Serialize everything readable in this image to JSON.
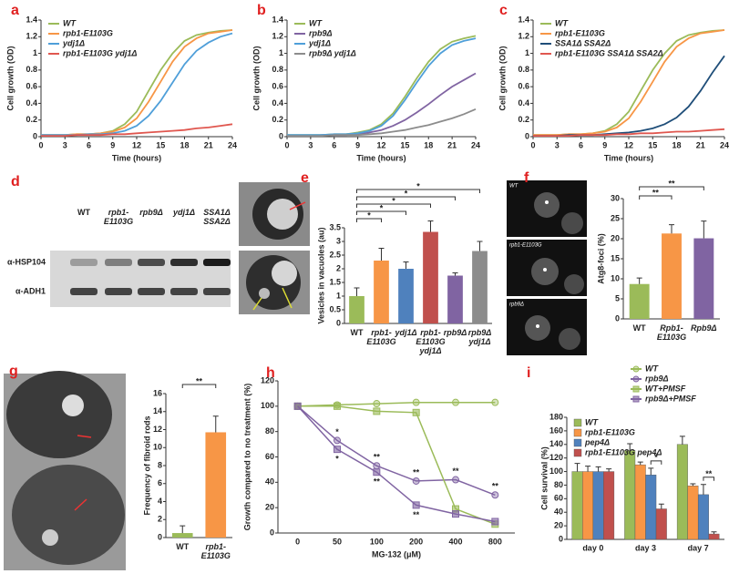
{
  "panel_letters": [
    "a",
    "b",
    "c",
    "d",
    "e",
    "f",
    "g",
    "h",
    "i"
  ],
  "blot": {
    "lanes": [
      "WT",
      "rpb1-E1103G",
      "rpb9Δ",
      "ydj1Δ",
      "SSA1Δ SSA2Δ"
    ],
    "rows": [
      "α-HSP104",
      "α-ADH1"
    ]
  },
  "micrograph_labels": [
    "WT",
    "rpb1-E1103G",
    "rpb9Δ"
  ],
  "chart_data": [
    {
      "type": "line",
      "x": [
        0,
        1.5,
        3,
        4.5,
        6,
        7.5,
        9,
        10.5,
        12,
        13.5,
        15,
        16.5,
        18,
        19.5,
        21,
        22.5,
        24
      ],
      "xlim": [
        0,
        24
      ],
      "xticks": [
        0,
        3,
        6,
        9,
        12,
        15,
        18,
        21,
        24
      ],
      "ylim": [
        0,
        1.4
      ],
      "yticks": [
        0,
        0.2,
        0.4,
        0.6,
        0.8,
        1,
        1.2,
        1.4
      ],
      "xlabel": "Time (hours)",
      "ylabel": "Cell growth (OD)",
      "legend": "upper left",
      "series": [
        {
          "name": "WT",
          "color": "#9bbb59",
          "values": [
            0.02,
            0.02,
            0.02,
            0.03,
            0.03,
            0.04,
            0.07,
            0.15,
            0.3,
            0.55,
            0.8,
            1.0,
            1.15,
            1.22,
            1.25,
            1.27,
            1.28
          ]
        },
        {
          "name": "rpb1-E1103G",
          "color": "#f79646",
          "values": [
            0.02,
            0.02,
            0.02,
            0.03,
            0.03,
            0.04,
            0.06,
            0.11,
            0.22,
            0.42,
            0.66,
            0.9,
            1.08,
            1.18,
            1.24,
            1.26,
            1.28
          ]
        },
        {
          "name": "ydj1Δ",
          "color": "#4f9fd9",
          "values": [
            0.02,
            0.02,
            0.02,
            0.02,
            0.03,
            0.03,
            0.04,
            0.07,
            0.13,
            0.25,
            0.43,
            0.65,
            0.87,
            1.03,
            1.13,
            1.2,
            1.24
          ]
        },
        {
          "name": "rpb1-E1103G ydj1Δ",
          "color": "#e0574f",
          "values": [
            0.01,
            0.01,
            0.01,
            0.02,
            0.02,
            0.02,
            0.03,
            0.03,
            0.04,
            0.05,
            0.06,
            0.07,
            0.08,
            0.1,
            0.11,
            0.13,
            0.15
          ]
        }
      ]
    },
    {
      "type": "line",
      "x": [
        0,
        1.5,
        3,
        4.5,
        6,
        7.5,
        9,
        10.5,
        12,
        13.5,
        15,
        16.5,
        18,
        19.5,
        21,
        22.5,
        24
      ],
      "xlim": [
        0,
        24
      ],
      "xticks": [
        0,
        3,
        6,
        9,
        12,
        15,
        18,
        21,
        24
      ],
      "ylim": [
        0,
        1.4
      ],
      "yticks": [
        0,
        0.2,
        0.4,
        0.6,
        0.8,
        1,
        1.2,
        1.4
      ],
      "xlabel": "Time (hours)",
      "ylabel": "Cell growth (OD)",
      "legend": "upper left",
      "series": [
        {
          "name": "WT",
          "color": "#9bbb59",
          "values": [
            0.02,
            0.02,
            0.02,
            0.02,
            0.03,
            0.03,
            0.05,
            0.08,
            0.15,
            0.28,
            0.48,
            0.7,
            0.9,
            1.05,
            1.14,
            1.18,
            1.21
          ]
        },
        {
          "name": "rpb9Δ",
          "color": "#8064a2",
          "values": [
            0.01,
            0.01,
            0.01,
            0.02,
            0.02,
            0.02,
            0.03,
            0.05,
            0.08,
            0.13,
            0.2,
            0.29,
            0.39,
            0.5,
            0.6,
            0.68,
            0.76
          ]
        },
        {
          "name": "ydj1Δ",
          "color": "#4f9fd9",
          "values": [
            0.02,
            0.02,
            0.02,
            0.02,
            0.03,
            0.03,
            0.04,
            0.07,
            0.13,
            0.25,
            0.44,
            0.65,
            0.85,
            1.0,
            1.1,
            1.15,
            1.18
          ]
        },
        {
          "name": "rpb9Δ ydj1Δ",
          "color": "#8c8c8c",
          "values": [
            0.01,
            0.01,
            0.01,
            0.01,
            0.02,
            0.02,
            0.02,
            0.03,
            0.04,
            0.06,
            0.08,
            0.11,
            0.14,
            0.18,
            0.22,
            0.27,
            0.33
          ]
        }
      ]
    },
    {
      "type": "line",
      "x": [
        0,
        1.5,
        3,
        4.5,
        6,
        7.5,
        9,
        10.5,
        12,
        13.5,
        15,
        16.5,
        18,
        19.5,
        21,
        22.5,
        24
      ],
      "xlim": [
        0,
        24
      ],
      "xticks": [
        0,
        3,
        6,
        9,
        12,
        15,
        18,
        21,
        24
      ],
      "ylim": [
        0,
        1.4
      ],
      "yticks": [
        0,
        0.2,
        0.4,
        0.6,
        0.8,
        1,
        1.2,
        1.4
      ],
      "xlabel": "Time (hours)",
      "ylabel": "Cell growth (OD)",
      "legend": "upper left",
      "series": [
        {
          "name": "WT",
          "color": "#9bbb59",
          "values": [
            0.02,
            0.02,
            0.02,
            0.03,
            0.03,
            0.04,
            0.07,
            0.15,
            0.3,
            0.55,
            0.8,
            1.0,
            1.15,
            1.22,
            1.25,
            1.27,
            1.28
          ]
        },
        {
          "name": "rpb1-E1103G",
          "color": "#f79646",
          "values": [
            0.02,
            0.02,
            0.02,
            0.03,
            0.03,
            0.04,
            0.06,
            0.11,
            0.22,
            0.42,
            0.66,
            0.9,
            1.08,
            1.18,
            1.24,
            1.26,
            1.28
          ]
        },
        {
          "name": "SSA1Δ SSA2Δ",
          "color": "#1f4e79",
          "values": [
            0.01,
            0.01,
            0.01,
            0.02,
            0.02,
            0.02,
            0.03,
            0.04,
            0.05,
            0.07,
            0.1,
            0.15,
            0.23,
            0.36,
            0.55,
            0.77,
            0.97
          ]
        },
        {
          "name": "rpb1-E1103G SSA1Δ SSA2Δ",
          "color": "#e0574f",
          "values": [
            0.01,
            0.01,
            0.01,
            0.01,
            0.02,
            0.02,
            0.02,
            0.03,
            0.03,
            0.04,
            0.04,
            0.05,
            0.06,
            0.06,
            0.07,
            0.08,
            0.09
          ]
        }
      ]
    },
    {
      "type": "bar",
      "categories": [
        "WT",
        "rpb1-E1103G",
        "ydj1Δ",
        "rpb1-E1103G ydj1Δ",
        "rpb9Δ",
        "rpb9Δ ydj1Δ"
      ],
      "values": [
        1.0,
        2.3,
        2.0,
        3.35,
        1.75,
        2.65
      ],
      "errors": [
        0.3,
        0.45,
        0.25,
        0.4,
        0.1,
        0.35
      ],
      "colors": [
        "#9bbb59",
        "#f79646",
        "#4f81bd",
        "#c0504d",
        "#8064a2",
        "#8c8c8c"
      ],
      "ylim": [
        0,
        3.5
      ],
      "yticks": [
        0,
        0.5,
        1,
        1.5,
        2,
        2.5,
        3,
        3.5
      ],
      "ylabel": "Vesicles in vacuoles (au)",
      "annotations": [
        "*",
        "*",
        "*",
        "*",
        "*"
      ]
    },
    {
      "type": "bar",
      "categories": [
        "WT",
        "Rpb1-E1103G",
        "Rpb9Δ"
      ],
      "values": [
        8.7,
        21.3,
        20.1
      ],
      "errors": [
        1.5,
        2.2,
        4.3
      ],
      "colors": [
        "#9bbb59",
        "#f79646",
        "#8064a2"
      ],
      "ylim": [
        0,
        30
      ],
      "yticks": [
        0,
        5,
        10,
        15,
        20,
        25,
        30
      ],
      "ylabel": "Atg8-foci (%)",
      "annotations": [
        "**",
        "**"
      ]
    },
    {
      "type": "bar",
      "categories": [
        "WT",
        "rpb1-E1103G"
      ],
      "values": [
        0.5,
        11.7
      ],
      "errors": [
        0.8,
        1.8
      ],
      "colors": [
        "#9bbb59",
        "#f79646"
      ],
      "ylim": [
        0,
        16
      ],
      "yticks": [
        0,
        2,
        4,
        6,
        8,
        10,
        12,
        14,
        16
      ],
      "ylabel": "Frequency of fibroid rods",
      "annotations": [
        "**"
      ]
    },
    {
      "type": "line",
      "markers": true,
      "categories": [
        0,
        50,
        100,
        200,
        400,
        800
      ],
      "ylim": [
        0,
        120
      ],
      "yticks": [
        0,
        20,
        40,
        60,
        80,
        100,
        120
      ],
      "xlabel": "MG-132 (μM)",
      "ylabel": "Growth compared to no treatment (%)",
      "legend": "right",
      "series": [
        {
          "name": "WT",
          "color": "#9bbb59",
          "marker": "circle",
          "values": [
            100,
            101,
            102,
            103,
            103,
            103
          ]
        },
        {
          "name": "rpb9Δ",
          "color": "#8064a2",
          "marker": "circle",
          "values": [
            100,
            73,
            53,
            41,
            42,
            30
          ]
        },
        {
          "name": "WT+PMSF",
          "color": "#9bbb59",
          "marker": "square",
          "values": [
            100,
            100,
            96,
            95,
            19,
            7
          ]
        },
        {
          "name": "rpb9Δ+PMSF",
          "color": "#8064a2",
          "marker": "square",
          "values": [
            100,
            66,
            48,
            22,
            15,
            9
          ]
        }
      ],
      "annotations": [
        "*",
        "*",
        "**",
        "**",
        "**",
        "**",
        "**",
        "**"
      ]
    },
    {
      "type": "grouped-bar",
      "categories": [
        "day 0",
        "day 3",
        "day 7"
      ],
      "ylim": [
        0,
        180
      ],
      "yticks": [
        0,
        20,
        40,
        60,
        80,
        100,
        120,
        140,
        160,
        180
      ],
      "ylabel": "Cell survival (%)",
      "legend": "upper left",
      "series": [
        {
          "name": "WT",
          "color": "#9bbb59",
          "values": [
            100,
            131,
            140
          ],
          "errors": [
            12,
            10,
            12
          ]
        },
        {
          "name": "rpb1-E1103G",
          "color": "#f79646",
          "values": [
            100,
            110,
            79
          ],
          "errors": [
            8,
            4,
            3
          ]
        },
        {
          "name": "pep4Δ",
          "color": "#4f81bd",
          "values": [
            100,
            95,
            66
          ],
          "errors": [
            7,
            10,
            15
          ]
        },
        {
          "name": "rpb1-E1103G pep4Δ",
          "color": "#c0504d",
          "values": [
            100,
            45,
            8
          ],
          "errors": [
            4,
            7,
            3
          ]
        }
      ],
      "annotations": [
        "*",
        "**"
      ]
    }
  ]
}
